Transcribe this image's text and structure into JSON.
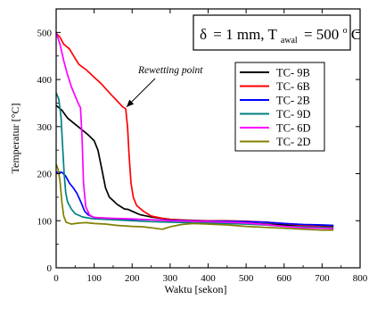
{
  "chart_data": {
    "type": "line",
    "title": "",
    "xlabel": "Waktu [sekon]",
    "ylabel": "Temperatur [°C]",
    "xlim": [
      0,
      800
    ],
    "ylim": [
      0,
      550
    ],
    "xticks": [
      0,
      100,
      200,
      300,
      400,
      500,
      600,
      700,
      800
    ],
    "yticks": [
      0,
      100,
      200,
      300,
      400,
      500
    ],
    "grid": false,
    "legend_position": "upper-right",
    "condition_box": {
      "delta": "δ",
      "equals": "= 1 mm, T",
      "subscript": "awal",
      "value": "= 500",
      "superscript": "o",
      "unit": "C"
    },
    "annotation": {
      "text": "Rewetting point",
      "target": {
        "x": 183,
        "y": 338
      }
    },
    "series": [
      {
        "name": "TC- 9B",
        "color": "#000000",
        "points": [
          [
            0,
            345
          ],
          [
            15,
            335
          ],
          [
            30,
            318
          ],
          [
            50,
            305
          ],
          [
            70,
            292
          ],
          [
            85,
            282
          ],
          [
            100,
            270
          ],
          [
            110,
            250
          ],
          [
            120,
            210
          ],
          [
            130,
            170
          ],
          [
            140,
            150
          ],
          [
            150,
            143
          ],
          [
            160,
            135
          ],
          [
            170,
            130
          ],
          [
            180,
            125
          ],
          [
            190,
            124
          ],
          [
            200,
            120
          ],
          [
            220,
            113
          ],
          [
            250,
            108
          ],
          [
            300,
            103
          ],
          [
            350,
            100
          ],
          [
            400,
            98
          ],
          [
            450,
            97
          ],
          [
            500,
            95
          ],
          [
            550,
            93
          ],
          [
            600,
            91
          ],
          [
            650,
            90
          ],
          [
            700,
            89
          ],
          [
            730,
            89
          ]
        ]
      },
      {
        "name": "TC- 6B",
        "color": "#ff0000",
        "points": [
          [
            0,
            498
          ],
          [
            10,
            490
          ],
          [
            20,
            475
          ],
          [
            35,
            465
          ],
          [
            50,
            445
          ],
          [
            60,
            432
          ],
          [
            80,
            420
          ],
          [
            100,
            405
          ],
          [
            120,
            390
          ],
          [
            140,
            372
          ],
          [
            160,
            355
          ],
          [
            175,
            342
          ],
          [
            183,
            338
          ],
          [
            188,
            300
          ],
          [
            192,
            240
          ],
          [
            197,
            180
          ],
          [
            203,
            150
          ],
          [
            212,
            132
          ],
          [
            230,
            120
          ],
          [
            250,
            110
          ],
          [
            280,
            105
          ],
          [
            300,
            103
          ],
          [
            350,
            101
          ],
          [
            400,
            100
          ],
          [
            450,
            100
          ],
          [
            500,
            99
          ],
          [
            550,
            97
          ],
          [
            600,
            94
          ],
          [
            650,
            90
          ],
          [
            700,
            87
          ],
          [
            730,
            86
          ]
        ]
      },
      {
        "name": "TC- 2B",
        "color": "#0000ff",
        "points": [
          [
            0,
            203
          ],
          [
            15,
            203
          ],
          [
            25,
            195
          ],
          [
            35,
            180
          ],
          [
            45,
            170
          ],
          [
            55,
            158
          ],
          [
            65,
            140
          ],
          [
            75,
            120
          ],
          [
            85,
            112
          ],
          [
            100,
            107
          ],
          [
            130,
            105
          ],
          [
            160,
            104
          ],
          [
            200,
            103
          ],
          [
            250,
            102
          ],
          [
            300,
            101
          ],
          [
            350,
            100
          ],
          [
            400,
            99
          ],
          [
            450,
            99
          ],
          [
            500,
            98
          ],
          [
            550,
            97
          ],
          [
            600,
            94
          ],
          [
            650,
            92
          ],
          [
            700,
            91
          ],
          [
            730,
            90
          ]
        ]
      },
      {
        "name": "TC- 9D",
        "color": "#008080",
        "points": [
          [
            0,
            372
          ],
          [
            7,
            358
          ],
          [
            13,
            320
          ],
          [
            17,
            260
          ],
          [
            21,
            200
          ],
          [
            25,
            160
          ],
          [
            30,
            140
          ],
          [
            40,
            125
          ],
          [
            50,
            115
          ],
          [
            70,
            108
          ],
          [
            100,
            104
          ],
          [
            150,
            102
          ],
          [
            200,
            100
          ],
          [
            250,
            98
          ],
          [
            300,
            97
          ],
          [
            350,
            96
          ],
          [
            400,
            95
          ],
          [
            450,
            94
          ],
          [
            500,
            93
          ],
          [
            550,
            91
          ],
          [
            600,
            88
          ],
          [
            650,
            87
          ],
          [
            700,
            86
          ],
          [
            730,
            85
          ]
        ]
      },
      {
        "name": "TC- 6D",
        "color": "#ff00ff",
        "points": [
          [
            0,
            500
          ],
          [
            10,
            475
          ],
          [
            20,
            440
          ],
          [
            30,
            410
          ],
          [
            40,
            385
          ],
          [
            50,
            365
          ],
          [
            58,
            350
          ],
          [
            64,
            340
          ],
          [
            68,
            280
          ],
          [
            72,
            180
          ],
          [
            78,
            130
          ],
          [
            88,
            112
          ],
          [
            100,
            107
          ],
          [
            150,
            105
          ],
          [
            200,
            104
          ],
          [
            250,
            102
          ],
          [
            300,
            100
          ],
          [
            350,
            99
          ],
          [
            400,
            98
          ],
          [
            450,
            97
          ],
          [
            500,
            95
          ],
          [
            550,
            92
          ],
          [
            600,
            88
          ],
          [
            650,
            85
          ],
          [
            700,
            84
          ],
          [
            730,
            83
          ]
        ]
      },
      {
        "name": "TC- 2D",
        "color": "#808000",
        "points": [
          [
            0,
            220
          ],
          [
            5,
            210
          ],
          [
            10,
            185
          ],
          [
            15,
            140
          ],
          [
            20,
            110
          ],
          [
            26,
            97
          ],
          [
            40,
            93
          ],
          [
            60,
            95
          ],
          [
            80,
            96
          ],
          [
            100,
            94
          ],
          [
            130,
            93
          ],
          [
            160,
            90
          ],
          [
            200,
            88
          ],
          [
            230,
            87
          ],
          [
            260,
            84
          ],
          [
            280,
            82
          ],
          [
            300,
            87
          ],
          [
            330,
            92
          ],
          [
            360,
            94
          ],
          [
            400,
            93
          ],
          [
            450,
            91
          ],
          [
            500,
            88
          ],
          [
            550,
            86
          ],
          [
            600,
            84
          ],
          [
            650,
            82
          ],
          [
            700,
            80
          ],
          [
            730,
            80
          ]
        ]
      }
    ]
  }
}
